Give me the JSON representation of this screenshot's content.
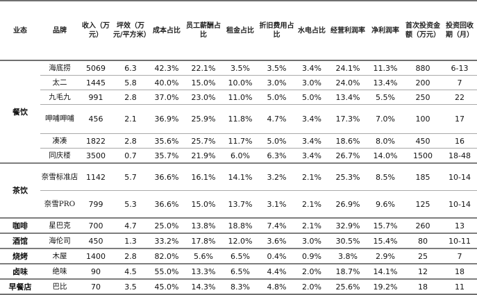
{
  "table": {
    "headers": [
      "业态",
      "品牌",
      "收入（万元）",
      "坪效（万元/平方米）",
      "成本占比",
      "员工薪酬占比",
      "租金占比",
      "折旧费用占比",
      "水电占比",
      "经营利润率",
      "净利润率",
      "首次投资金额（万元）",
      "投资回收期（月）"
    ],
    "groups": [
      {
        "format": "餐饮",
        "rows": [
          [
            "海底捞",
            "5069",
            "6.3",
            "42.3%",
            "22.1%",
            "3.5%",
            "3.5%",
            "3.4%",
            "24.1%",
            "11.3%",
            "880",
            "6-13"
          ],
          [
            "太二",
            "1445",
            "5.8",
            "40.0%",
            "15.0%",
            "10.0%",
            "3.0%",
            "3.0%",
            "24.0%",
            "13.4%",
            "200",
            "7"
          ],
          [
            "九毛九",
            "991",
            "2.8",
            "37.0%",
            "23.0%",
            "11.0%",
            "5.0%",
            "5.0%",
            "13.4%",
            "5.5%",
            "250",
            "22"
          ],
          [
            "呷哺呷哺",
            "456",
            "2.1",
            "36.9%",
            "25.9%",
            "11.8%",
            "4.7%",
            "3.4%",
            "17.3%",
            "7.0%",
            "100",
            "17"
          ],
          [
            "凑凑",
            "1822",
            "2.8",
            "35.6%",
            "25.7%",
            "11.7%",
            "5.0%",
            "3.4%",
            "18.6%",
            "8.0%",
            "450",
            "16"
          ],
          [
            "同庆楼",
            "3500",
            "0.7",
            "35.7%",
            "21.9%",
            "6.0%",
            "6.3%",
            "3.4%",
            "26.7%",
            "14.0%",
            "1500",
            "18-48"
          ]
        ]
      },
      {
        "format": "茶饮",
        "rows": [
          [
            "奈雪标准店",
            "1142",
            "5.7",
            "36.6%",
            "16.1%",
            "14.1%",
            "3.2%",
            "2.1%",
            "25.3%",
            "8.5%",
            "185",
            "10-14"
          ],
          [
            "奈雪PRO",
            "799",
            "5.3",
            "36.6%",
            "15.0%",
            "13.7%",
            "3.1%",
            "2.1%",
            "26.9%",
            "9.6%",
            "125",
            "10-14"
          ]
        ]
      },
      {
        "format": "咖啡",
        "rows": [
          [
            "星巴克",
            "700",
            "4.7",
            "25.0%",
            "13.8%",
            "18.8%",
            "7.4%",
            "2.1%",
            "32.9%",
            "15.7%",
            "260",
            "13"
          ]
        ]
      },
      {
        "format": "酒馆",
        "rows": [
          [
            "海伦司",
            "450",
            "1.3",
            "33.2%",
            "17.8%",
            "12.0%",
            "3.6%",
            "3.0%",
            "30.5%",
            "15.4%",
            "80",
            "10-11"
          ]
        ]
      },
      {
        "format": "烧烤",
        "rows": [
          [
            "木屋",
            "1400",
            "2.8",
            "82.0%",
            "5.6%",
            "6.5%",
            "0.4%",
            "0.9%",
            "3.8%",
            "2.9%",
            "25",
            "7"
          ]
        ]
      },
      {
        "format": "卤味",
        "rows": [
          [
            "绝味",
            "90",
            "4.5",
            "55.0%",
            "13.3%",
            "6.5%",
            "4.4%",
            "2.0%",
            "18.7%",
            "14.1%",
            "12",
            "18"
          ]
        ]
      },
      {
        "format": "早餐店",
        "rows": [
          [
            "巴比",
            "70",
            "3.5",
            "45.0%",
            "14.3%",
            "8.3%",
            "4.8%",
            "2.0%",
            "25.6%",
            "19.2%",
            "18",
            "11"
          ]
        ]
      }
    ]
  }
}
